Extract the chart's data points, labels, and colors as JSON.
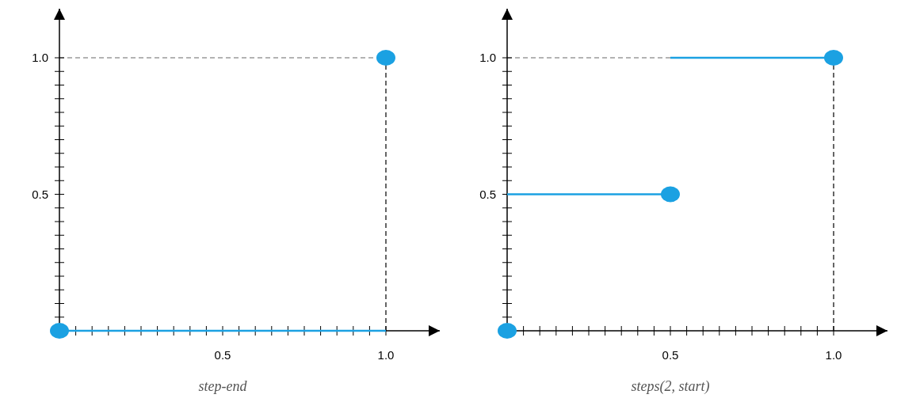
{
  "chart_data": [
    {
      "type": "line",
      "xlabel": "step-end",
      "xlim": [
        0,
        1.165
      ],
      "ylim": [
        0,
        1.18
      ],
      "xticks": [
        {
          "value": 0.05,
          "label": null
        },
        {
          "value": 0.1,
          "label": null
        },
        {
          "value": 0.15,
          "label": null
        },
        {
          "value": 0.2,
          "label": null
        },
        {
          "value": 0.25,
          "label": null
        },
        {
          "value": 0.3,
          "label": null
        },
        {
          "value": 0.35,
          "label": null
        },
        {
          "value": 0.4,
          "label": null
        },
        {
          "value": 0.45,
          "label": null
        },
        0.5,
        {
          "value": 0.55,
          "label": null
        },
        {
          "value": 0.6,
          "label": null
        },
        {
          "value": 0.65,
          "label": null
        },
        {
          "value": 0.7,
          "label": null
        },
        {
          "value": 0.75,
          "label": null
        },
        {
          "value": 0.8,
          "label": null
        },
        {
          "value": 0.85,
          "label": null
        },
        {
          "value": 0.9,
          "label": null
        },
        {
          "value": 0.95,
          "label": null
        },
        {
          "value": 1,
          "label": "1.0"
        }
      ],
      "yticks": [
        {
          "value": 0.05,
          "label": null
        },
        {
          "value": 0.1,
          "label": null
        },
        {
          "value": 0.15,
          "label": null
        },
        {
          "value": 0.2,
          "label": null
        },
        {
          "value": 0.25,
          "label": null
        },
        {
          "value": 0.3,
          "label": null
        },
        {
          "value": 0.35,
          "label": null
        },
        {
          "value": 0.4,
          "label": null
        },
        {
          "value": 0.45,
          "label": null
        },
        0.5,
        {
          "value": 0.55,
          "label": null
        },
        {
          "value": 0.6,
          "label": null
        },
        {
          "value": 0.65,
          "label": null
        },
        {
          "value": 0.7,
          "label": null
        },
        {
          "value": 0.75,
          "label": null
        },
        {
          "value": 0.8,
          "label": null
        },
        {
          "value": 0.85,
          "label": null
        },
        {
          "value": 0.9,
          "label": null
        },
        {
          "value": 0.95,
          "label": null
        },
        {
          "value": 1,
          "label": "1.0"
        }
      ],
      "ref_lines": [
        {
          "axis": "y",
          "value": 1,
          "color": "#9a9a9a",
          "line_style": "dashed"
        },
        {
          "axis": "x",
          "value": 1,
          "color": "#333333",
          "line_style": "dashed"
        }
      ],
      "series": [
        {
          "color": "#1ba1e2",
          "x": [
            0,
            1
          ],
          "values": [
            0,
            0
          ]
        },
        {
          "type": "scatter",
          "color": "#1ba1e2",
          "marker": "circle",
          "x": [
            0,
            1
          ],
          "values": [
            0,
            1
          ]
        }
      ]
    },
    {
      "type": "line",
      "xlabel": "steps(2, start)",
      "xlim": [
        0,
        1.165
      ],
      "ylim": [
        0,
        1.18
      ],
      "xticks": [
        {
          "value": 0.05,
          "label": null
        },
        {
          "value": 0.1,
          "label": null
        },
        {
          "value": 0.15,
          "label": null
        },
        {
          "value": 0.2,
          "label": null
        },
        {
          "value": 0.25,
          "label": null
        },
        {
          "value": 0.3,
          "label": null
        },
        {
          "value": 0.35,
          "label": null
        },
        {
          "value": 0.4,
          "label": null
        },
        {
          "value": 0.45,
          "label": null
        },
        0.5,
        {
          "value": 0.55,
          "label": null
        },
        {
          "value": 0.6,
          "label": null
        },
        {
          "value": 0.65,
          "label": null
        },
        {
          "value": 0.7,
          "label": null
        },
        {
          "value": 0.75,
          "label": null
        },
        {
          "value": 0.8,
          "label": null
        },
        {
          "value": 0.85,
          "label": null
        },
        {
          "value": 0.9,
          "label": null
        },
        {
          "value": 0.95,
          "label": null
        },
        {
          "value": 1,
          "label": "1.0"
        }
      ],
      "yticks": [
        {
          "value": 0.05,
          "label": null
        },
        {
          "value": 0.1,
          "label": null
        },
        {
          "value": 0.15,
          "label": null
        },
        {
          "value": 0.2,
          "label": null
        },
        {
          "value": 0.25,
          "label": null
        },
        {
          "value": 0.3,
          "label": null
        },
        {
          "value": 0.35,
          "label": null
        },
        {
          "value": 0.4,
          "label": null
        },
        {
          "value": 0.45,
          "label": null
        },
        0.5,
        {
          "value": 0.55,
          "label": null
        },
        {
          "value": 0.6,
          "label": null
        },
        {
          "value": 0.65,
          "label": null
        },
        {
          "value": 0.7,
          "label": null
        },
        {
          "value": 0.75,
          "label": null
        },
        {
          "value": 0.8,
          "label": null
        },
        {
          "value": 0.85,
          "label": null
        },
        {
          "value": 0.9,
          "label": null
        },
        {
          "value": 0.95,
          "label": null
        },
        {
          "value": 1,
          "label": "1.0"
        }
      ],
      "ref_lines": [
        {
          "axis": "y",
          "value": 1,
          "color": "#9a9a9a",
          "line_style": "dashed"
        },
        {
          "axis": "x",
          "value": 1,
          "color": "#333333",
          "line_style": "dashed"
        }
      ],
      "series": [
        {
          "color": "#1ba1e2",
          "x": [
            0,
            0.5
          ],
          "values": [
            0.5,
            0.5
          ]
        },
        {
          "color": "#1ba1e2",
          "x": [
            0.5,
            1
          ],
          "values": [
            1,
            1
          ]
        },
        {
          "type": "scatter",
          "color": "#1ba1e2",
          "marker": "circle",
          "x": [
            0,
            0.5,
            1
          ],
          "values": [
            0,
            0.5,
            1
          ]
        }
      ]
    }
  ]
}
